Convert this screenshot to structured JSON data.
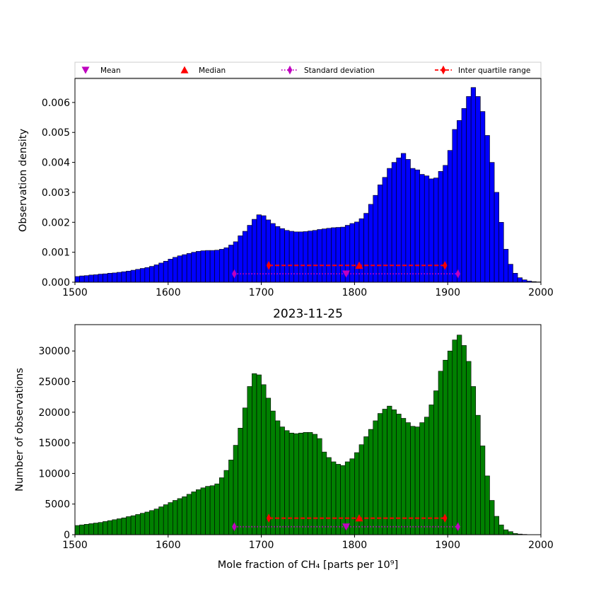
{
  "legend": {
    "placement": "top",
    "entries": [
      {
        "label": "Mean",
        "marker": "triangle-down",
        "color": "#bf00bf"
      },
      {
        "label": "Median",
        "marker": "triangle-up",
        "color": "#ff0000"
      },
      {
        "label": "Standard deviation",
        "marker": "thin-diamond",
        "line": "dotted",
        "color": "#bf00bf"
      },
      {
        "label": "Inter quartile range",
        "marker": "thin-diamond",
        "line": "dashed",
        "color": "#ff0000"
      }
    ]
  },
  "chart_data": [
    {
      "type": "bar",
      "title": "",
      "xlabel": "",
      "ylabel": "Observation density",
      "xlim": [
        1500,
        2000
      ],
      "ylim": [
        0,
        0.0068
      ],
      "xticks": [
        "1500",
        "1600",
        "1700",
        "1800",
        "1900",
        "2000"
      ],
      "yticks": [
        "0.000",
        "0.001",
        "0.002",
        "0.003",
        "0.004",
        "0.005",
        "0.006"
      ],
      "bar_color": "#0000ff",
      "bin_start": 1500,
      "bin_width": 5,
      "values": [
        0.00019,
        0.00021,
        0.00022,
        0.00024,
        0.00025,
        0.00027,
        0.00028,
        0.0003,
        0.00031,
        0.00033,
        0.00035,
        0.00037,
        0.0004,
        0.00043,
        0.00046,
        0.00049,
        0.00053,
        0.00058,
        0.00064,
        0.0007,
        0.00077,
        0.00083,
        0.00088,
        0.00092,
        0.00096,
        0.001,
        0.00103,
        0.00105,
        0.00106,
        0.00106,
        0.00107,
        0.0011,
        0.00115,
        0.00124,
        0.00135,
        0.00155,
        0.0017,
        0.0019,
        0.0021,
        0.00225,
        0.00222,
        0.00208,
        0.00196,
        0.00186,
        0.00179,
        0.00173,
        0.0017,
        0.00168,
        0.00168,
        0.00169,
        0.00171,
        0.00173,
        0.00176,
        0.00178,
        0.0018,
        0.00182,
        0.00183,
        0.00184,
        0.0019,
        0.00196,
        0.00201,
        0.00212,
        0.0023,
        0.0026,
        0.0029,
        0.00325,
        0.0035,
        0.0038,
        0.004,
        0.00415,
        0.0043,
        0.0041,
        0.0038,
        0.00375,
        0.0036,
        0.00355,
        0.00345,
        0.00348,
        0.0037,
        0.0039,
        0.0044,
        0.0051,
        0.0054,
        0.0058,
        0.0062,
        0.0065,
        0.0062,
        0.0057,
        0.0049,
        0.004,
        0.003,
        0.002,
        0.0011,
        0.0006,
        0.0003,
        0.00015,
        8e-05,
        4e-05,
        2e-05,
        1e-05
      ],
      "stats": {
        "mean": 1791,
        "median": 1805,
        "std_range": [
          1671,
          1911
        ],
        "iqr_range": [
          1708,
          1897
        ],
        "mean_y": 0.00028,
        "std_y": 0.00028,
        "median_y": 0.00056,
        "iqr_y": 0.00056
      }
    },
    {
      "type": "bar",
      "title": "2023-11-25",
      "xlabel": "Mole fraction of CH₄ [parts per 10⁹]",
      "ylabel": "Number of observations",
      "xlim": [
        1500,
        2000
      ],
      "ylim": [
        0,
        34300
      ],
      "xticks": [
        "1500",
        "1600",
        "1700",
        "1800",
        "1900",
        "2000"
      ],
      "yticks": [
        "0",
        "5000",
        "10000",
        "15000",
        "20000",
        "25000",
        "30000"
      ],
      "bar_color": "#008000",
      "bin_start": 1500,
      "bin_width": 5,
      "values": [
        1500,
        1600,
        1700,
        1800,
        1900,
        2000,
        2150,
        2300,
        2450,
        2600,
        2750,
        2950,
        3100,
        3300,
        3500,
        3700,
        3950,
        4200,
        4550,
        4900,
        5250,
        5600,
        5900,
        6200,
        6600,
        7000,
        7350,
        7650,
        7900,
        8000,
        8300,
        9300,
        10500,
        12200,
        14600,
        17400,
        20700,
        24200,
        26300,
        26100,
        24500,
        22300,
        20200,
        18600,
        17600,
        17000,
        16600,
        16500,
        16600,
        16700,
        16700,
        16400,
        15700,
        13500,
        12600,
        11900,
        11500,
        11300,
        11900,
        12400,
        13400,
        14700,
        16000,
        17200,
        18600,
        19800,
        20500,
        21000,
        20400,
        19700,
        19000,
        18300,
        17700,
        17600,
        18300,
        19200,
        21200,
        23500,
        26700,
        28500,
        30000,
        31800,
        32600,
        30900,
        28300,
        24200,
        19500,
        14500,
        9600,
        5600,
        3000,
        1600,
        800,
        500,
        200,
        100,
        50,
        20,
        10,
        5
      ],
      "stats": {
        "mean": 1791,
        "median": 1805,
        "std_range": [
          1671,
          1911
        ],
        "iqr_range": [
          1708,
          1897
        ],
        "mean_y": 1300,
        "std_y": 1300,
        "median_y": 2700,
        "iqr_y": 2700
      }
    }
  ]
}
